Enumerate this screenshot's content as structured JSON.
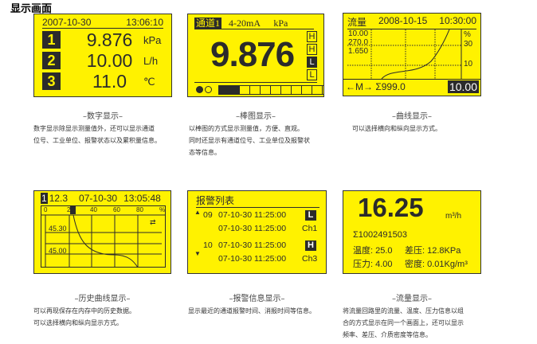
{
  "page_title": "显示画面",
  "colors": {
    "lcd_background": "#fff200",
    "lcd_ink": "#2b2b2b"
  },
  "panels": {
    "digital": {
      "date": "2007-10-30",
      "time": "13:06:10",
      "rows": [
        {
          "ch": "1",
          "value": "9.876",
          "unit": "kPa"
        },
        {
          "ch": "2",
          "value": "10.00",
          "unit": "L/h"
        },
        {
          "ch": "3",
          "value": "11.0",
          "unit": "℃"
        }
      ],
      "caption": "–数字显示–",
      "desc": [
        "数字显示除显示测量值外，还可以显示通道",
        "位号、工业单位、报警状态以及累积量信息。"
      ]
    },
    "bar": {
      "channel": "通道1",
      "signal": "4-20mA",
      "unit": "kPa",
      "value": "9.876",
      "alarms": [
        "H",
        "H",
        "L",
        "L"
      ],
      "alarm_active": [
        false,
        false,
        true,
        false
      ],
      "bar_filled_segments": 2,
      "bar_total_segments": 11,
      "caption": "–棒图显示–",
      "desc": [
        "以棒图的方式显示测量值，方便、直观。",
        "同时还显示有通道位号、工业单位及报警状",
        "态等信息。"
      ]
    },
    "curve": {
      "label": "流量",
      "date": "2008-10-15",
      "time": "10:30:00",
      "values": [
        "10.00",
        "270.0",
        "1.650"
      ],
      "scale": [
        "%",
        "30",
        "10"
      ],
      "nav": "←M→",
      "total": "Σ999.0",
      "current": "10.00",
      "caption": "–曲线显示–",
      "desc": [
        "可以选择横向和纵向显示方式。"
      ]
    },
    "history": {
      "ch": "1",
      "value": "12.3",
      "date": "07-10-30",
      "time": "13:05:48",
      "ticks": [
        "0",
        "20",
        "40",
        "60",
        "80",
        "%"
      ],
      "levels": [
        "45.30",
        "45.00"
      ],
      "swap_icon": "⇄",
      "caption": "–历史曲线显示–",
      "desc": [
        "可以再现保存在内存中的历史数据。",
        "可以选择横向和纵向显示方式。"
      ]
    },
    "alarm": {
      "title": "报警列表",
      "entries": [
        {
          "no": "09",
          "t1": "07-10-30 11:25:00",
          "type": "L",
          "t2": "07-10-30 11:25:00",
          "ch": "Ch1"
        },
        {
          "no": "10",
          "t1": "07-10-30 11:25:00",
          "type": "H",
          "t2": "07-10-30 11:25:00",
          "ch": "Ch3"
        }
      ],
      "caption": "–报警信息显示–",
      "desc": [
        "显示最近的通道报警时间、消报时间等信息。"
      ]
    },
    "flow": {
      "value": "16.25",
      "unit": "m³/h",
      "total": "Σ1002491503",
      "line1a": "温度: 25.0",
      "line1b": "差压: 12.8KPa",
      "line2a": "压力: 4.00",
      "line2b": "密度: 0.01Kg/m³",
      "caption": "–流量显示–",
      "desc": [
        "将流量回路里的流量、温度、压力信息以组",
        "合的方式显示在同一个画面上，还可以显示",
        "频率、差压、介质密度等信息。"
      ]
    }
  }
}
